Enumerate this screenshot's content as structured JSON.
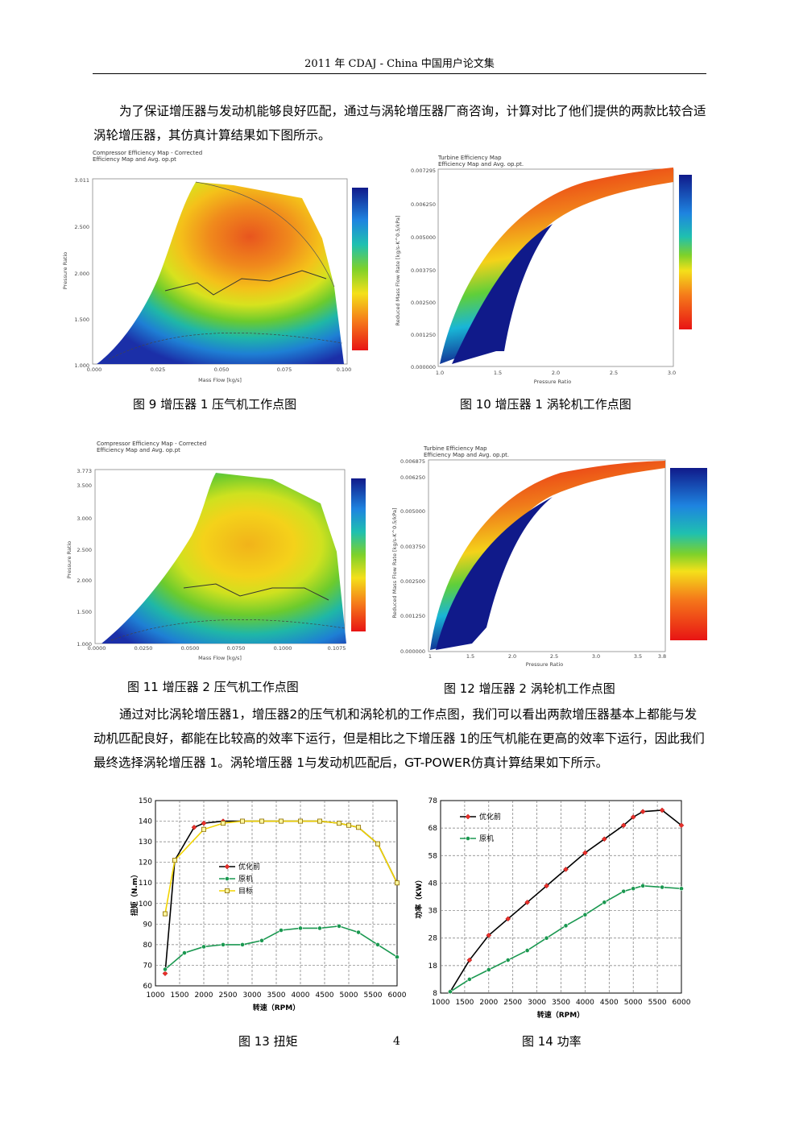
{
  "header": "2011 年  CDAJ - China  中国用户论文集",
  "paragraph1": "为了保证增压器与发动机能够良好匹配，通过与涡轮增压器厂商咨询，计算对比了他们提供的两款比较合适涡轮增压器，其仿真计算结果如下图所示。",
  "paragraph2": "通过对比涡轮增压器1，增压器2的压气机和涡轮机的工作点图，我们可以看出两款增压器基本上都能与发动机匹配良好，都能在比较高的效率下运行，但是相比之下增压器 1的压气机能在更高的效率下运行，因此我们最终选择涡轮增压器 1。涡轮增压器 1与发动机匹配后，GT-POWER仿真计算结果如下所示。",
  "captions": {
    "fig9": "图 9  增压器 1 压气机工作点图",
    "fig10": "图 10  增压器 1 涡轮机工作点图",
    "fig11": "图 11  增压器 2 压气机工作点图",
    "fig12": "图 12  增压器 2 涡轮机工作点图",
    "fig13": "图 13  扭矩",
    "fig14": "图 14  功率"
  },
  "page_number": "4",
  "maps": {
    "fig9": {
      "title1": "Compressor Efficiency Map - Corrected",
      "title2": "Efficiency Map and Avg. op.pt",
      "xlabel": "Mass Flow [kg/s]",
      "ylabel": "Pressure Ratio",
      "xticks": [
        "0.000",
        "0.025",
        "0.050",
        "0.075",
        "0.100"
      ],
      "yticks": [
        "3.011",
        "2.500",
        "2.000",
        "1.500",
        "1.000"
      ]
    },
    "fig10": {
      "title1": "Turbine Efficiency Map",
      "title2": "Efficiency Map and Avg. op.pt.",
      "xlabel": "Pressure Ratio",
      "ylabel": "Reduced Mass Flow Rate [kg/s-K^0.5/kPa]",
      "xticks": [
        "1.0",
        "1.5",
        "2.0",
        "2.5",
        "3.0"
      ],
      "yticks": [
        "0.007295",
        "0.006250",
        "0.005000",
        "0.003750",
        "0.002500",
        "0.001250",
        "0.000000"
      ]
    },
    "fig11": {
      "title1": "Compressor Efficiency Map - Corrected",
      "title2": "Efficiency Map and Avg. op.pt",
      "xlabel": "Mass Flow [kg/s]",
      "ylabel": "Pressure Ratio",
      "xticks": [
        "0.0000",
        "0.0250",
        "0.0500",
        "0.0750",
        "0.1000",
        "0.1075"
      ],
      "yticks": [
        "3.773",
        "3.500",
        "3.000",
        "2.500",
        "2.000",
        "1.500",
        "1.000"
      ]
    },
    "fig12": {
      "title1": "Turbine Efficiency Map",
      "title2": "Efficiency Map and Avg. op.pt.",
      "xlabel": "Pressure Ratio",
      "ylabel": "Reduced Mass Flow Rate [kg/s-K^0.5/kPa]",
      "xticks": [
        "1",
        "1.5",
        "2.0",
        "2.5",
        "3.0",
        "3.5",
        "3.8"
      ],
      "yticks": [
        "0.006875",
        "0.006250",
        "0.005000",
        "0.003750",
        "0.002500",
        "0.001250",
        "0.000000"
      ]
    }
  },
  "chart_data": [
    {
      "type": "line",
      "xlabel": "转速（RPM）",
      "ylabel": "扭矩（N.m）",
      "xlim": [
        1000,
        6000
      ],
      "ylim": [
        60,
        150
      ],
      "xticks": [
        1000,
        1500,
        2000,
        2500,
        3000,
        3500,
        4000,
        4500,
        5000,
        5500,
        6000
      ],
      "yticks": [
        60,
        70,
        80,
        90,
        100,
        110,
        120,
        130,
        140,
        150
      ],
      "grid": true,
      "legend_position": "center-left",
      "series": [
        {
          "name": "优化前",
          "color": "#e8312b",
          "marker": "diamond",
          "x": [
            1200,
            1400,
            1800,
            2000,
            2400,
            2800,
            3200,
            3600,
            4000,
            4400,
            4800,
            5000,
            5200,
            5600,
            6000
          ],
          "y": [
            66,
            121,
            137,
            139,
            140,
            140,
            140,
            140,
            140,
            140,
            139,
            138,
            137,
            129,
            110
          ]
        },
        {
          "name": "原机",
          "color": "#1a9850",
          "marker": "circle",
          "x": [
            1200,
            1600,
            2000,
            2400,
            2800,
            3200,
            3600,
            4000,
            4400,
            4800,
            5200,
            5600,
            6000
          ],
          "y": [
            68,
            76,
            79,
            80,
            80,
            82,
            87,
            88,
            88,
            89,
            86,
            80,
            74
          ]
        },
        {
          "name": "目标",
          "color": "#f2d400",
          "marker": "square",
          "x": [
            1200,
            1400,
            2000,
            2400,
            2800,
            3200,
            3600,
            4000,
            4400,
            4800,
            5000,
            5200,
            5600,
            6000
          ],
          "y": [
            95,
            121,
            136,
            139,
            140,
            140,
            140,
            140,
            140,
            139,
            138,
            137,
            129,
            110
          ]
        }
      ]
    },
    {
      "type": "line",
      "xlabel": "转速（RPM）",
      "ylabel": "功率（KW）",
      "xlim": [
        1000,
        6000
      ],
      "ylim": [
        8,
        78
      ],
      "xticks": [
        1000,
        1500,
        2000,
        2500,
        3000,
        3500,
        4000,
        4500,
        5000,
        5500,
        6000
      ],
      "yticks": [
        8,
        18,
        28,
        38,
        48,
        58,
        68,
        78
      ],
      "grid": true,
      "legend_position": "top-left",
      "series": [
        {
          "name": "优化前",
          "color": "#e8312b",
          "marker": "diamond",
          "x": [
            1200,
            1600,
            2000,
            2400,
            2800,
            3200,
            3600,
            4000,
            4400,
            4800,
            5000,
            5200,
            5600,
            6000
          ],
          "y": [
            8.5,
            20,
            29,
            35,
            41,
            47,
            53,
            59,
            64,
            69,
            72,
            74,
            74.5,
            69
          ]
        },
        {
          "name": "原机",
          "color": "#1a9850",
          "marker": "circle",
          "x": [
            1200,
            1600,
            2000,
            2400,
            2800,
            3200,
            3600,
            4000,
            4400,
            4800,
            5000,
            5200,
            5600,
            6000
          ],
          "y": [
            8.5,
            13,
            16.5,
            20,
            23.5,
            28,
            32.5,
            36.5,
            41,
            45,
            46,
            47,
            46.5,
            46
          ]
        }
      ]
    }
  ]
}
